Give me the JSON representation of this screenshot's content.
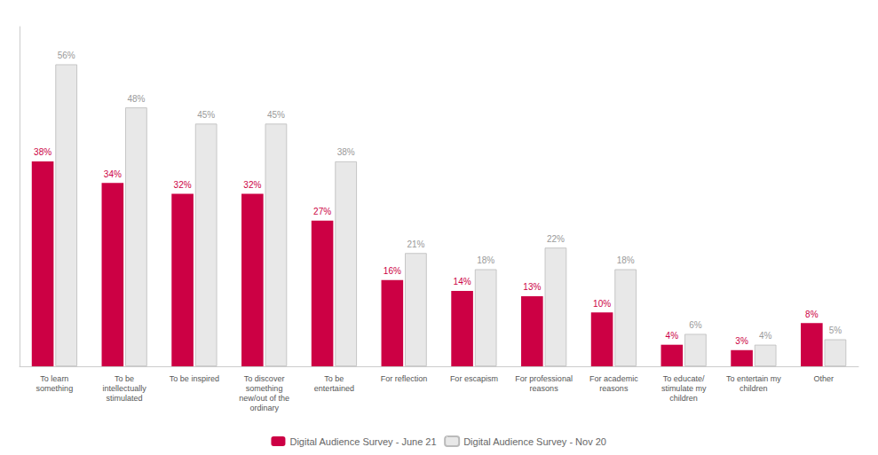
{
  "chart_data": {
    "type": "bar",
    "categories": [
      "To learn\nsomething",
      "To be\nintellectually\nstimulated",
      "To be inspired",
      "To discover\nsomething\nnew/out of the\nordinary",
      "To be\nentertained",
      "For reflection",
      "For escapism",
      "For professional\nreasons",
      "For academic\nreasons",
      "To educate/\nstimulate my\nchildren",
      "To entertain my\nchildren",
      "Other"
    ],
    "series": [
      {
        "name": "Digital Audience Survey - June 21",
        "color": "#cc0044",
        "values": [
          38,
          34,
          32,
          32,
          27,
          16,
          14,
          13,
          10,
          4,
          3,
          8
        ],
        "value_labels": [
          "38%",
          "34%",
          "32%",
          "32%",
          "27%",
          "16%",
          "14%",
          "13%",
          "10%",
          "4%",
          "3%",
          "8%"
        ]
      },
      {
        "name": "Digital Audience Survey - Nov 20",
        "color": "#e8e8e8",
        "values": [
          56,
          48,
          45,
          45,
          38,
          21,
          18,
          22,
          18,
          6,
          4,
          5
        ],
        "value_labels": [
          "56%",
          "48%",
          "45%",
          "45%",
          "38%",
          "21%",
          "18%",
          "22%",
          "18%",
          "6%",
          "4%",
          "5%"
        ]
      }
    ],
    "ylim": [
      0,
      63
    ],
    "grid": false,
    "tick_labels": "x",
    "data_labels": true,
    "legend": "bottom"
  }
}
